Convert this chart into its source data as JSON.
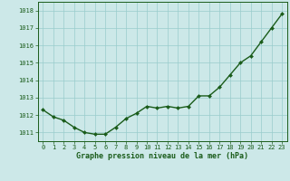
{
  "x": [
    0,
    1,
    2,
    3,
    4,
    5,
    6,
    7,
    8,
    9,
    10,
    11,
    12,
    13,
    14,
    15,
    16,
    17,
    18,
    19,
    20,
    21,
    22,
    23
  ],
  "y": [
    1012.3,
    1011.9,
    1011.7,
    1011.3,
    1011.0,
    1010.9,
    1010.9,
    1011.3,
    1011.8,
    1012.1,
    1012.5,
    1012.4,
    1012.5,
    1012.4,
    1012.5,
    1013.1,
    1013.1,
    1013.6,
    1014.3,
    1015.0,
    1015.4,
    1016.2,
    1017.0,
    1017.8
  ],
  "line_color": "#1a5c1a",
  "marker": "D",
  "marker_size": 2.0,
  "bg_color": "#cce8e8",
  "grid_color": "#99cccc",
  "xlabel": "Graphe pression niveau de la mer (hPa)",
  "xlabel_color": "#1a5c1a",
  "tick_color": "#1a5c1a",
  "ylim": [
    1010.5,
    1018.5
  ],
  "yticks": [
    1011,
    1012,
    1013,
    1014,
    1015,
    1016,
    1017,
    1018
  ],
  "xlim": [
    -0.5,
    23.5
  ],
  "xticks": [
    0,
    1,
    2,
    3,
    4,
    5,
    6,
    7,
    8,
    9,
    10,
    11,
    12,
    13,
    14,
    15,
    16,
    17,
    18,
    19,
    20,
    21,
    22,
    23
  ],
  "line_width": 1.0,
  "marker_color": "#1a5c1a",
  "spine_color": "#1a5c1a",
  "tick_fontsize": 5.0,
  "xlabel_fontsize": 6.0
}
